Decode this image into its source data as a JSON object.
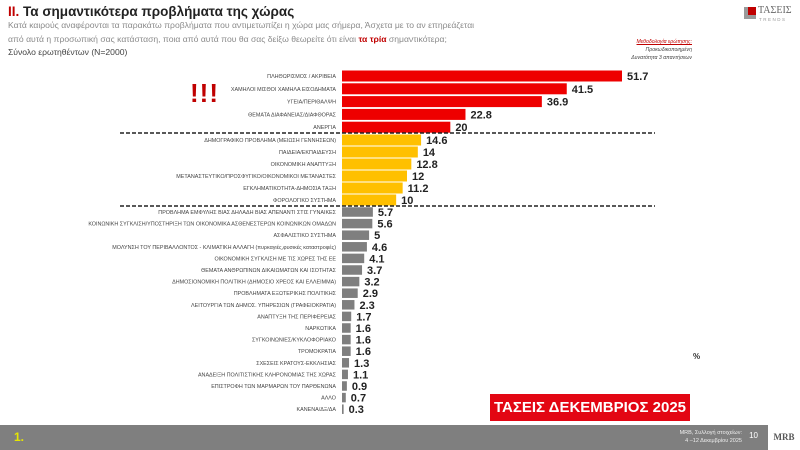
{
  "header": {
    "title_number": "II.",
    "title": "Τα σημαντικότερα προβλήματα της χώρας",
    "question_line1": "Κατά καιρούς αναφέρονται τα παρακάτω προβλήματα που αντιμετωπίζει η χώρα μας σήμερα, Άσχετα με το αν επηρεάζεται",
    "question_line2a": "από αυτά η προσωπική σας κατάσταση, ποια από αυτά που θα σας δείξω θεωρείτε ότι είναι ",
    "question_line2b": "τα τρία",
    "question_line2c": " σημαντικότερα;",
    "total": "Σύνολο ερωτηθέντων (N=2000)",
    "logo_text": "ΤΑΣΕΙΣ",
    "logo_sub": "TRENDS"
  },
  "methodology": {
    "heading": "Μεθοδολογία ερώτησης:",
    "line1": "Προκωδικοποιημένη",
    "line2": "Δυνατότητα 3 απαντήσεων"
  },
  "emphasis": "!!!",
  "unit_label": "%",
  "stamp": "ΤΑΣΕΙΣ ΔΕΚΕΜΒΡΙΟΣ 2025",
  "footer": {
    "slide_marker": "1.",
    "source_line1": "MRB, Συλλογή στοιχείων:",
    "source_line2": "4 –12 Δεκεμβρίου 2025",
    "page": "10",
    "logo": "MRB"
  },
  "colors": {
    "top": "#ee0000",
    "middle": "#ffc000",
    "rest": "#7f7f7f"
  },
  "chart_data": {
    "type": "bar",
    "orientation": "horizontal",
    "xlim": [
      0,
      55
    ],
    "grid": false,
    "categories": [
      "ΠΛΗΘΩΡΙΣΜΟΣ / ΑΚΡΙΒΕΙΑ",
      "ΧΑΜΗΛΟΙ ΜΙΣΘΟΙ ΧΑΜΗΛΑ ΕΙΣΟΔΗΜΑΤΑ",
      "ΥΓΕΙΑ/ΠΕΡΙΘΑΛΨΗ",
      "ΘΕΜΑΤΑ ΔΙΑΦΑΝΕΙΑΣ/ΔΙΑΦΘΟΡΑΣ",
      "ΑΝΕΡΓΙΑ",
      "ΔΗΜΟΓΡΑΦΙΚΟ ΠΡΟΒΛΗΜΑ (ΜΕΙΩΣΗ ΓΕΝΝΗΣΕΩΝ)",
      "ΠΑΙΔΕΙΑ/ΕΚΠΑΙΔΕΥΣΗ",
      "ΟΙΚΟΝΟΜΙΚΗ ΑΝΑΠΤΥΞΗ",
      "ΜΕΤΑΝΑΣΤΕΥΤΙΚΟ/ΠΡΟΣΦΥΓΙΚΟ/ΟΙΚΟΝΟΜΙΚΟΙ ΜΕΤΑΝΑΣΤΕΣ",
      "ΕΓΚΛΗΜΑΤΙΚΟΤΗΤΑ-ΔΗΜΟΣΙΑ ΤΑΞΗ",
      "ΦΟΡΟΛΟΓΙΚΟ ΣΥΣΤΗΜΑ",
      "ΠΡΟΒΛΗΜΑ ΕΜΦΥΛΗΣ ΒΙΑΣ ΔΗΛΑΔΗ ΒΙΑΣ ΑΠΕΝΑΝΤΙ ΣΤΙΣ ΓΥΝΑΙΚΕΣ",
      "ΚΟΙΝΩΝΙΚΗ ΣΥΓΚΛΙΣΗ/ΥΠΟΣΤΗΡΙΞΗ ΤΩΝ ΟΙΚΟΝΟΜΙΚΑ ΑΣΘΕΝΕΣΤΕΡΩΝ ΚΟΙΝΩΝΙΚΩΝ ΟΜΑΔΩΝ",
      "ΑΣΦΑΛΙΣΤΙΚΟ ΣΥΣΤΗΜΑ",
      "ΜΟΛΥΝΣΗ ΤΟΥ ΠΕΡΙΒΑΛΛΟΝΤΟΣ - ΚΛΙΜΑΤΙΚΗ ΑΛΛΑΓΗ (πυρκαγιές,φυσικές καταστροφές)",
      "ΟΙΚΟΝΟΜΙΚΗ ΣΥΓΚΛΙΣΗ ΜΕ ΤΙΣ ΧΩΡΕΣ ΤΗΣ ΕΕ",
      "ΘΕΜΑΤΑ ΑΝΘΡΩΠΙΝΩΝ ΔΙΚΑΙΩΜΑΤΩΝ ΚΑΙ ΙΣΟΤΗΤΑΣ",
      "ΔΗΜΟΣΙΟΝΟΜΙΚΗ ΠΟΛΙΤΙΚΗ (ΔΗΜΟΣΙΟ ΧΡΕΟΣ ΚΑΙ ΕΛΛΕΙΜΜΑ)",
      "ΠΡΟΒΛΗΜΑΤΑ ΕΞΩΤΕΡΙΚΗΣ ΠΟΛΙΤΙΚΗΣ",
      "ΛΕΙΤΟΥΡΓΙΑ ΤΩΝ ΔΗΜΟΣ. ΥΠΗΡΕΣΙΩΝ (ΓΡΑΦΕΙΟΚΡΑΤΙΑ)",
      "ΑΝΑΠΤΥΞΗ ΤΗΣ ΠΕΡΙΦΕΡΕΙΑΣ",
      "ΝΑΡΚΩΤΙΚΑ",
      "ΣΥΓΚΟΙΝΩΝΙΕΣ/ΚΥΚΛΟΦΟΡΙΑΚΟ",
      "ΤΡΟΜΟΚΡΑΤΙΑ",
      "ΣΧΕΣΕΙΣ ΚΡΑΤΟΥΣ-ΕΚΚΛΗΣΙΑΣ",
      "ΑΝΑΔΕΙΞΗ ΠΟΛΙΤΙΣΤΙΚΗΣ ΚΛΗΡΟΝΟΜΙΑΣ ΤΗΣ ΧΩΡΑΣ",
      "ΕΠΙΣΤΡΟΦΗ ΤΩΝ ΜΑΡΜΑΡΩΝ ΤΟΥ ΠΑΡΘΕΝΩΝΑ",
      "ΑΛΛΟ",
      "ΚΑΝΕΝΑ/ΔΞ/ΔΑ"
    ],
    "values": [
      51.7,
      41.5,
      36.9,
      22.8,
      20,
      14.6,
      14,
      12.8,
      12,
      11.2,
      10,
      5.7,
      5.6,
      5,
      4.6,
      4.1,
      3.7,
      3.2,
      2.9,
      2.3,
      1.7,
      1.6,
      1.6,
      1.6,
      1.3,
      1.1,
      0.9,
      0.7,
      0.3
    ],
    "groups": [
      5,
      6,
      18
    ]
  }
}
